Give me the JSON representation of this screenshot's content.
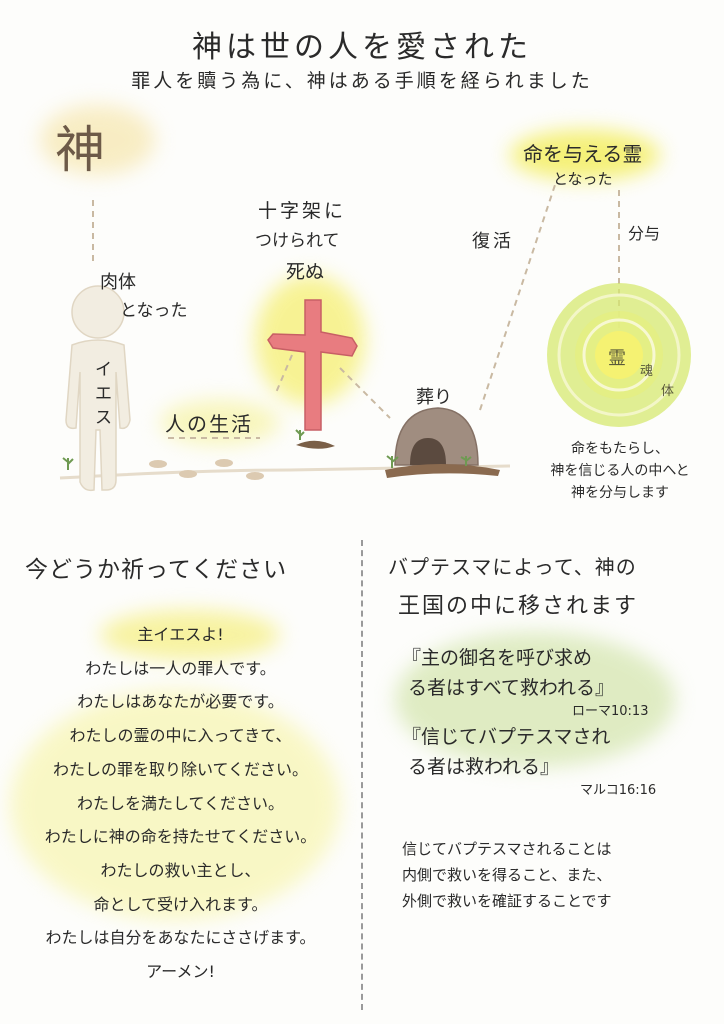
{
  "header": {
    "title": "神は世の人を愛された",
    "subtitle": "罪人を贖う為に、神はある手順を経られました"
  },
  "diagram": {
    "god_char": "神",
    "flesh_line1": "肉体",
    "flesh_line2": "となった",
    "jesus_vertical": "イエス",
    "human_life": "人の生活",
    "cross_line1": "十字架に",
    "cross_line2": "つけられて",
    "cross_line3": "死ぬ",
    "burial": "葬り",
    "resurrection": "復活",
    "spirit_line1": "命を与える霊",
    "spirit_line2": "となった",
    "impart": "分与",
    "rings": {
      "spirit": "霊",
      "soul": "魂",
      "body": "体"
    },
    "impart_note": [
      "命をもたらし、",
      "神を信じる人の中へと",
      "神を分与します"
    ]
  },
  "prayer": {
    "heading": "今どうか祈ってください",
    "lines": [
      "主イエスよ!",
      "わたしは一人の罪人です。",
      "わたしはあなたが必要です。",
      "わたしの霊の中に入ってきて、",
      "わたしの罪を取り除いてください。",
      "わたしを満たしてください。",
      "わたしに神の命を持たせてください。",
      "わたしの救い主とし、",
      "命として受け入れます。",
      "わたしは自分をあなたにささげます。",
      "アーメン!"
    ]
  },
  "baptism": {
    "heading_line1": "バプテスマによって、神の",
    "heading_line2": "王国の中に移されます",
    "verse1_line1": "『主の御名を呼び求め",
    "verse1_line2": "る者はすべて救われる』",
    "verse1_ref": "ローマ10:13",
    "verse2_line1": "『信じてバプテスマされ",
    "verse2_line2": "る者は救われる』",
    "verse2_ref": "マルコ16:16",
    "note": [
      "信じてバプテスマされることは",
      "内側で救いを得ること、また、",
      "外側で救いを確証することです"
    ]
  },
  "colors": {
    "yellow_wash": "#f6f07a",
    "green_wash": "#cfe3a6",
    "cross": "#e87c80",
    "tomb": "#a08d80",
    "figure": "#f2ede1",
    "ring_outer": "#d6e870",
    "ring_inner": "#f3f27a"
  }
}
